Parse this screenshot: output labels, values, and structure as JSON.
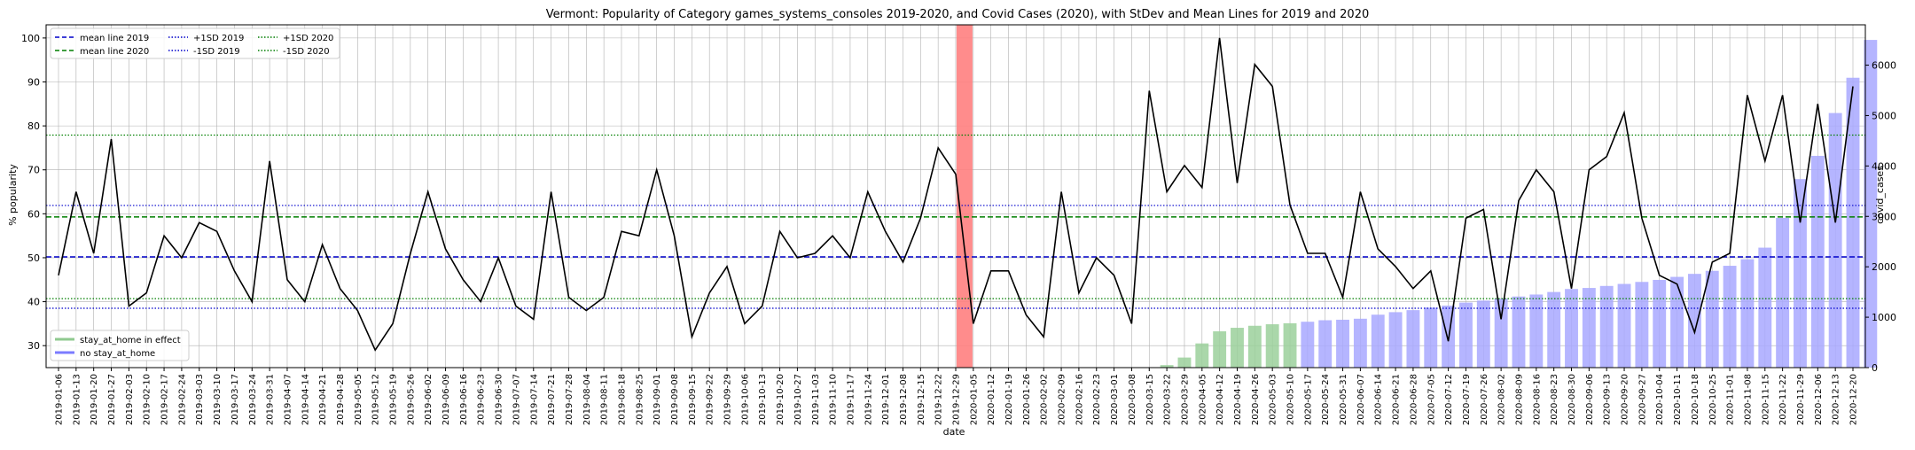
{
  "chart_data": {
    "type": "bar",
    "title": "Vermont: Popularity of Category games_systems_consoles 2019-2020, and Covid Cases (2020), with StDev and Mean Lines for 2019 and 2020",
    "xlabel": "date",
    "ylabel": "% popularity",
    "y2label": "covid_cases",
    "ylim": [
      25,
      103
    ],
    "y2lim": [
      0,
      6800
    ],
    "yticks": [
      30,
      40,
      50,
      60,
      70,
      80,
      90,
      100
    ],
    "y2ticks": [
      0,
      1000,
      2000,
      3000,
      4000,
      5000,
      6000
    ],
    "grid": true,
    "legend_lines_position": "top-left",
    "legend_bars_position": "bottom-left",
    "dates": [
      "2019-01-06",
      "2019-01-13",
      "2019-01-20",
      "2019-01-27",
      "2019-02-03",
      "2019-02-10",
      "2019-02-17",
      "2019-02-24",
      "2019-03-03",
      "2019-03-10",
      "2019-03-17",
      "2019-03-24",
      "2019-03-31",
      "2019-04-07",
      "2019-04-14",
      "2019-04-21",
      "2019-04-28",
      "2019-05-05",
      "2019-05-12",
      "2019-05-19",
      "2019-05-26",
      "2019-06-02",
      "2019-06-09",
      "2019-06-16",
      "2019-06-23",
      "2019-06-30",
      "2019-07-07",
      "2019-07-14",
      "2019-07-21",
      "2019-07-28",
      "2019-08-04",
      "2019-08-11",
      "2019-08-18",
      "2019-08-25",
      "2019-09-01",
      "2019-09-08",
      "2019-09-15",
      "2019-09-22",
      "2019-09-29",
      "2019-10-06",
      "2019-10-13",
      "2019-10-20",
      "2019-10-27",
      "2019-11-03",
      "2019-11-10",
      "2019-11-17",
      "2019-11-24",
      "2019-12-01",
      "2019-12-08",
      "2019-12-15",
      "2019-12-22",
      "2019-12-29",
      "2020-01-05",
      "2020-01-12",
      "2020-01-19",
      "2020-01-26",
      "2020-02-02",
      "2020-02-09",
      "2020-02-16",
      "2020-02-23",
      "2020-03-01",
      "2020-03-08",
      "2020-03-15",
      "2020-03-22",
      "2020-03-29",
      "2020-04-05",
      "2020-04-12",
      "2020-04-19",
      "2020-04-26",
      "2020-05-03",
      "2020-05-10",
      "2020-05-17",
      "2020-05-24",
      "2020-05-31",
      "2020-06-07",
      "2020-06-14",
      "2020-06-21",
      "2020-06-28",
      "2020-07-05",
      "2020-07-12",
      "2020-07-19",
      "2020-07-26",
      "2020-08-02",
      "2020-08-09",
      "2020-08-16",
      "2020-08-23",
      "2020-08-30",
      "2020-09-06",
      "2020-09-13",
      "2020-09-20",
      "2020-09-27",
      "2020-10-04",
      "2020-10-11",
      "2020-10-18",
      "2020-10-25",
      "2020-11-01",
      "2020-11-08",
      "2020-11-15",
      "2020-11-22",
      "2020-11-29",
      "2020-12-06",
      "2020-12-13",
      "2020-12-20"
    ],
    "tick_labels": [
      "2019-01-06",
      "2019-01-13",
      "2019-01-20",
      "2019-01-27",
      "2019-02-03",
      "2019-02-10",
      "2019-02-17",
      "2019-02-24",
      "2019-03-03",
      "2019-03-10",
      "2019-03-17",
      "2019-03-24",
      "2019-03-31",
      "2019-04-07",
      "2019-04-14",
      "2019-04-21",
      "2019-04-28",
      "2019-05-05",
      "2019-05-12",
      "2019-05-19",
      "2019-05-26",
      "2019-06-02",
      "2019-06-09",
      "2019-06-16",
      "2019-06-23",
      "2019-06-30",
      "2019-07-07",
      "2019-07-14",
      "2019-07-21",
      "2019-07-28",
      "2019-08-04",
      "2019-08-11",
      "2019-08-18",
      "2019-08-25",
      "2019-09-01",
      "2019-09-08",
      "2019-09-15",
      "2019-09-22",
      "2019-09-29",
      "2019-10-06",
      "2019-10-13",
      "2019-10-20",
      "2019-10-27",
      "2019-11-03",
      "2019-11-10",
      "2019-11-17",
      "2019-11-24",
      "2019-12-01",
      "2019-12-08",
      "2019-12-15",
      "2019-12-22",
      "2019-12-29",
      "2020-01-05",
      "2020-01-12",
      "2020-01-19",
      "2020-01-26",
      "2020-02-02",
      "2020-02-09",
      "2020-02-16",
      "2020-02-23",
      "2020-03-01",
      "2020-03-08",
      "2020-03-15",
      "2020-03-22",
      "2020-03-29",
      "2020-04-05",
      "2020-04-12",
      "2020-04-19",
      "2020-04-26",
      "2020-05-03",
      "2020-05-10",
      "2020-05-17",
      "2020-05-24",
      "2020-05-31",
      "2020-06-07",
      "2020-06-14",
      "2020-06-21",
      "2020-06-28",
      "2020-07-05",
      "2020-07-12",
      "2020-07-19",
      "2020-07-26",
      "2020-08-02",
      "2020-08-09",
      "2020-08-16",
      "2020-08-23",
      "2020-08-30",
      "2020-09-06",
      "2020-09-13",
      "2020-09-20",
      "2020-09-27",
      "2020-10-04",
      "2020-10-11",
      "2020-10-18",
      "2020-10-25",
      "2020-11-01",
      "2020-11-08",
      "2020-11-15",
      "2020-11-22",
      "2020-11-29",
      "2020-12-06",
      "2020-12-13",
      "2020-12-20"
    ],
    "popularity": [
      46,
      65,
      51,
      77,
      39,
      42,
      55,
      50,
      58,
      56,
      47,
      40,
      72,
      45,
      40,
      53,
      43,
      38,
      29,
      35,
      51,
      65,
      52,
      45,
      40,
      50,
      39,
      36,
      65,
      41,
      38,
      41,
      56,
      55,
      70,
      55,
      32,
      42,
      48,
      35,
      39,
      56,
      50,
      51,
      55,
      50,
      65,
      56,
      49,
      59,
      75,
      69,
      35,
      47,
      47,
      37,
      32,
      65,
      42,
      50,
      46,
      35,
      88,
      65,
      71,
      66,
      100,
      67,
      94,
      89,
      62,
      51,
      51,
      41,
      65,
      52,
      48,
      43,
      47,
      31,
      59,
      61,
      36,
      63,
      70,
      65,
      43,
      70,
      73,
      83,
      59,
      46,
      44,
      33,
      49,
      51,
      87,
      72,
      87,
      58,
      85,
      58,
      89
    ],
    "covid_cases": [
      0,
      0,
      0,
      0,
      0,
      0,
      0,
      0,
      0,
      0,
      0,
      0,
      0,
      0,
      0,
      0,
      0,
      0,
      0,
      0,
      0,
      0,
      0,
      0,
      0,
      0,
      0,
      0,
      0,
      0,
      0,
      0,
      0,
      0,
      0,
      0,
      0,
      0,
      0,
      0,
      0,
      0,
      0,
      0,
      0,
      0,
      0,
      0,
      0,
      0,
      0,
      0,
      0,
      0,
      0,
      0,
      0,
      0,
      0,
      0,
      0,
      0,
      0,
      50,
      200,
      480,
      720,
      790,
      830,
      860,
      880,
      910,
      940,
      950,
      970,
      1050,
      1100,
      1140,
      1190,
      1230,
      1290,
      1330,
      1370,
      1410,
      1450,
      1500,
      1560,
      1580,
      1620,
      1660,
      1700,
      1740,
      1800,
      1860,
      1920,
      2020,
      2150,
      2380,
      2970,
      3740,
      4200,
      5050,
      5750,
      6500
    ],
    "stay_at_home_in_effect": [
      false,
      false,
      false,
      false,
      false,
      false,
      false,
      false,
      false,
      false,
      false,
      false,
      false,
      false,
      false,
      false,
      false,
      false,
      false,
      false,
      false,
      false,
      false,
      false,
      false,
      false,
      false,
      false,
      false,
      false,
      false,
      false,
      false,
      false,
      false,
      false,
      false,
      false,
      false,
      false,
      false,
      false,
      false,
      false,
      false,
      false,
      false,
      false,
      false,
      false,
      false,
      false,
      false,
      false,
      false,
      false,
      false,
      false,
      false,
      false,
      false,
      false,
      false,
      true,
      true,
      true,
      true,
      true,
      true,
      true,
      true,
      false,
      false,
      false,
      false,
      false,
      false,
      false,
      false,
      false,
      false,
      false,
      false,
      false,
      false,
      false,
      false,
      false,
      false,
      false,
      false,
      false,
      false,
      false,
      false,
      false,
      false,
      false,
      false,
      false,
      false,
      false,
      false
    ],
    "year_boundary_marker": "2019-12-29",
    "reference_lines": {
      "mean_2019": 50.2,
      "mean_2020": 59.3,
      "plus_1sd_2019": 61.9,
      "minus_1sd_2019": 38.5,
      "plus_1sd_2020": 77.9,
      "minus_1sd_2020": 40.7
    },
    "legend_lines": [
      {
        "label": "mean line 2019",
        "color": "#0000cc",
        "dash": "dashed"
      },
      {
        "label": "mean line 2020",
        "color": "#007f00",
        "dash": "dashed"
      },
      {
        "label": "+1SD 2019",
        "color": "#0000cc",
        "dash": "dotted"
      },
      {
        "label": "-1SD 2019",
        "color": "#0000cc",
        "dash": "dotted"
      },
      {
        "label": "+1SD 2020",
        "color": "#007f00",
        "dash": "dotted"
      },
      {
        "label": "-1SD 2020",
        "color": "#007f00",
        "dash": "dotted"
      }
    ],
    "legend_bars": [
      {
        "label": "stay_at_home in effect",
        "color": "#8fc98f"
      },
      {
        "label": "no stay_at_home",
        "color": "#7b7bff"
      }
    ],
    "colors": {
      "popularity_line": "#000000",
      "bar_stay_at_home": "#9bd09b",
      "bar_no_stay_at_home": "#a8a8ff",
      "marker": "#ff7f7f",
      "grid": "#b0b0b0"
    }
  }
}
